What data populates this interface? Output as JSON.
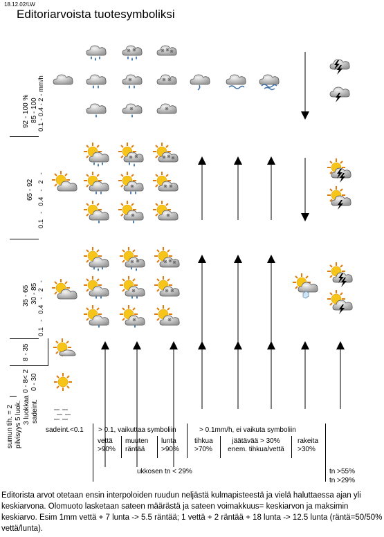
{
  "header": {
    "ref": "18.12.02/LW",
    "title": "Editoriarvoista tuotesymboliksi"
  },
  "axis": {
    "rainrate_labels": [
      "0.1  -  0.4  -  2  -  mm/h"
    ],
    "unit": "mm/h",
    "band1": {
      "pct": "92 - 100 %",
      "pct2": "85 - 100"
    },
    "band2": {
      "pct": "65 - 92"
    },
    "band3": {
      "pct": "35 - 65",
      "pct2": "30 - 85"
    },
    "band4": {
      "pct": "8 - 35"
    },
    "band5": {
      "a": "0 - 30",
      "b": "0 - 8",
      "c": "< 2"
    },
    "left_labels": [
      "sumun tih. = 2",
      "pilvisyys 5 luok.",
      "3 luokkaa",
      "sadeint."
    ],
    "ticks": {
      "r1": "2",
      "r2": "0.4",
      "r3": "0.1",
      "dash": "-"
    }
  },
  "columns": {
    "sadeint": "sadeint.<0.1",
    "group1": "> 0.1,  vaikuttaa symboliin",
    "vetta": [
      "vettä",
      ">90%"
    ],
    "muuten": [
      "muuten",
      "räntää"
    ],
    "lunta": [
      "lunta",
      ">90%"
    ],
    "group2": "> 0.1mm/h,    ei vaikuta symboliin",
    "tihkua": [
      "tihkua",
      ">70%"
    ],
    "jaatava": [
      "jäätävää > 30%",
      "enem. tihkua/vettä"
    ],
    "rakeita": [
      "rakeita",
      ">30%"
    ],
    "ukkosen": "ukkosen  tn < 29%",
    "tn55": "tn >55%",
    "tn29": "tn >29%"
  },
  "footnote": "Editorista arvot otetaan ensin interpoloiden ruudun neljästä kulmapisteestä ja vielä haluttaessa ajan yli keskiarvona.  Olomuoto lasketaan sateen määrästä ja sateen voimakkuus= keskiarvon ja maksimin keskiarvo. Esim 1mm vettä + 7 lunta -> 5.5 räntää; 1 vettä + 2 räntää + 18 lunta -> 12.5 lunta (räntä=50/50% vettä/lunta).",
  "icons": [
    "cloud-icon",
    "rain-cloud-icon",
    "sleet-cloud-icon",
    "snow-cloud-icon",
    "drizzle-cloud-icon",
    "freezing-rain-icon",
    "thunder-cloud-icon",
    "sun-icon",
    "sun-cloud-icon",
    "hail-icon",
    "arrow-up-icon",
    "arrow-down-icon"
  ],
  "colors": {
    "cloud_fill": "#d7d7d7",
    "cloud_stroke": "#555555",
    "rain": "#3a6ea5",
    "sun": "#f7c51a",
    "sun_ray": "#e07a0a",
    "bolt": "#000000"
  }
}
